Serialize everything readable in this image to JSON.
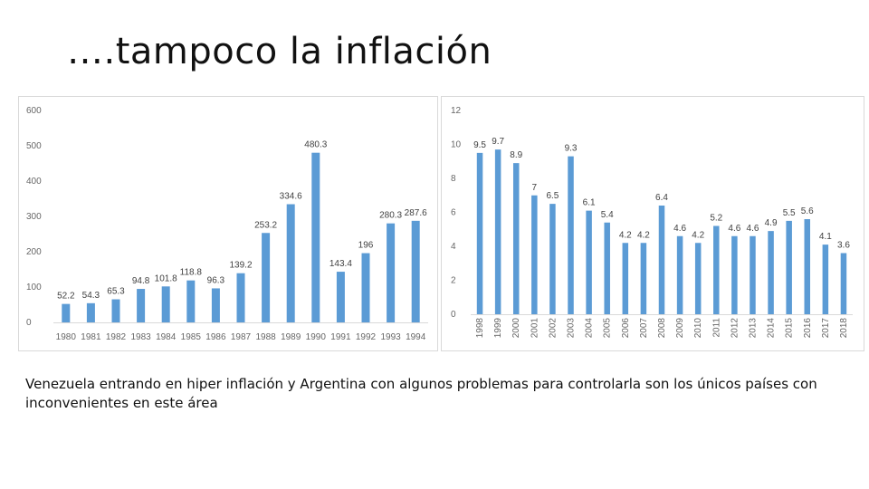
{
  "slide": {
    "title": "….tampoco la inflación",
    "caption": "Venezuela entrando en hiper inflación y Argentina con algunos problemas para controlarla son los únicos países con inconvenientes en este área"
  },
  "colors": {
    "bar": "#5b9bd5"
  },
  "chart_data": [
    {
      "type": "bar",
      "categories": [
        "1980",
        "1981",
        "1982",
        "1983",
        "1984",
        "1985",
        "1986",
        "1987",
        "1988",
        "1989",
        "1990",
        "1991",
        "1992",
        "1993",
        "1994"
      ],
      "values": [
        52.2,
        54.3,
        65.3,
        94.8,
        101.8,
        118.8,
        96.3,
        139.2,
        253.2,
        334.6,
        480.3,
        143.4,
        196,
        280.3,
        287.6
      ],
      "value_labels": [
        "52.2",
        "54.3",
        "65.3",
        "94.8",
        "101.8",
        "118.8",
        "96.3",
        "139.2",
        "253.2",
        "334.6",
        "480.3",
        "143.4",
        "196",
        "280.3",
        "287.6"
      ],
      "yticks": [
        "0",
        "100",
        "200",
        "300",
        "400",
        "500",
        "600"
      ],
      "ylim": [
        0,
        600
      ],
      "grid": false
    },
    {
      "type": "bar",
      "categories": [
        "1998",
        "1999",
        "2000",
        "2001",
        "2002",
        "2003",
        "2004",
        "2005",
        "2006",
        "2007",
        "2008",
        "2009",
        "2010",
        "2011",
        "2012",
        "2013",
        "2014",
        "2015",
        "2016",
        "2017",
        "2018"
      ],
      "values": [
        9.5,
        9.7,
        8.9,
        7,
        6.5,
        9.3,
        6.1,
        5.4,
        4.2,
        4.2,
        6.4,
        4.6,
        4.2,
        5.2,
        4.6,
        4.6,
        4.9,
        5.5,
        5.6,
        4.1,
        3.6
      ],
      "value_labels": [
        "9.5",
        "9.7",
        "8.9",
        "7",
        "6.5",
        "9.3",
        "6.1",
        "5.4",
        "4.2",
        "4.2",
        "6.4",
        "4.6",
        "4.2",
        "5.2",
        "4.6",
        "4.6",
        "4.9",
        "5.5",
        "5.6",
        "4.1",
        "3.6"
      ],
      "yticks": [
        "0",
        "2",
        "4",
        "6",
        "8",
        "10",
        "12"
      ],
      "ylim": [
        0,
        12
      ],
      "grid": false
    }
  ]
}
